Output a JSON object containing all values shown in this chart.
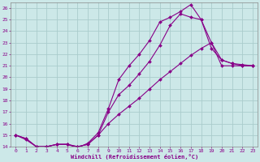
{
  "xlabel": "Windchill (Refroidissement éolien,°C)",
  "bg_color": "#cce8e8",
  "grid_color": "#aacccc",
  "line_color": "#880088",
  "xlim": [
    -0.5,
    23.5
  ],
  "ylim": [
    14,
    26.5
  ],
  "yticks": [
    14,
    15,
    16,
    17,
    18,
    19,
    20,
    21,
    22,
    23,
    24,
    25,
    26
  ],
  "xticks": [
    0,
    1,
    2,
    3,
    4,
    5,
    6,
    7,
    8,
    9,
    10,
    11,
    12,
    13,
    14,
    15,
    16,
    17,
    18,
    19,
    20,
    21,
    22,
    23
  ],
  "line1_x": [
    0,
    1,
    2,
    3,
    4,
    5,
    6,
    7,
    8,
    9,
    10,
    11,
    12,
    13,
    14,
    15,
    16,
    17,
    18,
    19,
    20,
    21,
    22,
    23
  ],
  "line1_y": [
    15.0,
    14.7,
    14.0,
    14.0,
    14.2,
    14.2,
    13.9,
    14.3,
    15.2,
    17.3,
    19.8,
    21.0,
    22.0,
    23.2,
    24.8,
    25.2,
    25.7,
    26.3,
    25.0,
    22.5,
    21.5,
    21.2,
    21.1,
    21.0
  ],
  "line2_x": [
    0,
    1,
    2,
    3,
    4,
    5,
    6,
    7,
    8,
    9,
    10,
    11,
    12,
    13,
    14,
    15,
    16,
    17,
    18,
    19,
    20,
    21,
    22,
    23
  ],
  "line2_y": [
    15.0,
    14.6,
    14.0,
    14.0,
    14.2,
    14.2,
    14.0,
    14.2,
    15.0,
    17.0,
    18.5,
    19.3,
    20.3,
    21.4,
    22.8,
    24.5,
    25.5,
    25.2,
    25.0,
    23.0,
    21.5,
    21.2,
    21.0,
    21.0
  ],
  "line3_x": [
    0,
    1,
    2,
    3,
    4,
    5,
    6,
    7,
    8,
    9,
    10,
    11,
    12,
    13,
    14,
    15,
    16,
    17,
    18,
    19,
    20,
    21,
    22,
    23
  ],
  "line3_y": [
    15.0,
    14.7,
    14.0,
    14.0,
    14.2,
    14.2,
    14.0,
    14.2,
    15.0,
    16.0,
    16.8,
    17.5,
    18.2,
    19.0,
    19.8,
    20.5,
    21.2,
    21.9,
    22.5,
    23.0,
    21.0,
    21.0,
    21.0,
    21.0
  ]
}
